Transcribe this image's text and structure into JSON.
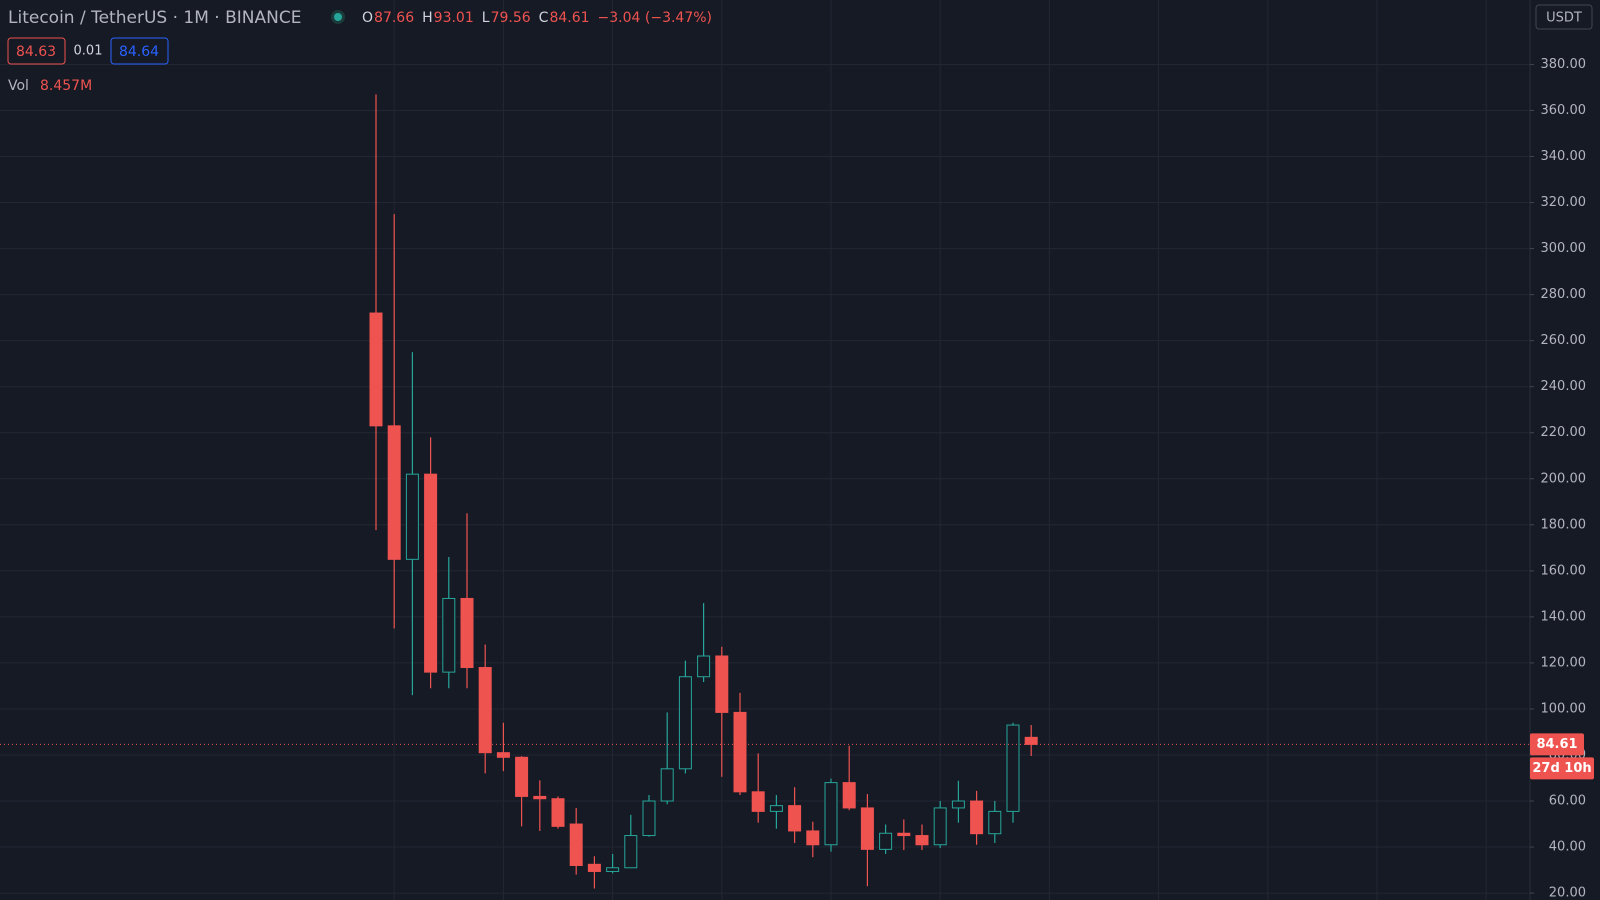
{
  "chart_data": {
    "type": "candlestick",
    "title": "Litecoin / TetherUS · 1M · BINANCE",
    "ohlc_letters": [
      "O",
      "H",
      "L",
      "C"
    ],
    "change": "−3.04 (−3.47%)",
    "quote": {
      "bid": "84.63",
      "spread": "0.01",
      "ask": "84.64"
    },
    "volume_label": "Vol",
    "volume_value": "8.457M",
    "currency": "USDT",
    "countdown": "27d 10h",
    "up_color": "#26a69a",
    "down_color": "#ef5350",
    "ylim": [
      17,
      408
    ],
    "yticks": [
      {
        "value": 20,
        "label": "20.00"
      },
      {
        "value": 40,
        "label": "40.00"
      },
      {
        "value": 60,
        "label": "60.00"
      },
      {
        "value": 80,
        "label": "80.00"
      },
      {
        "value": 100,
        "label": "100.00"
      },
      {
        "value": 120,
        "label": "120.00"
      },
      {
        "value": 140,
        "label": "140.00"
      },
      {
        "value": 160,
        "label": "160.00"
      },
      {
        "value": 180,
        "label": "180.00"
      },
      {
        "value": 200,
        "label": "200.00"
      },
      {
        "value": 220,
        "label": "220.00"
      },
      {
        "value": 240,
        "label": "240.00"
      },
      {
        "value": 260,
        "label": "260.00"
      },
      {
        "value": 280,
        "label": "280.00"
      },
      {
        "value": 300,
        "label": "300.00"
      },
      {
        "value": 320,
        "label": "320.00"
      },
      {
        "value": 340,
        "label": "340.00"
      },
      {
        "value": 360,
        "label": "360.00"
      },
      {
        "value": 380,
        "label": "380.00"
      }
    ],
    "grid": true,
    "open": [
      272,
      223,
      165,
      202,
      116,
      148,
      118,
      81,
      79,
      62,
      61,
      50,
      32.5,
      29.4,
      31,
      45,
      60,
      74,
      114,
      123,
      98.5,
      64,
      55.5,
      58,
      47,
      41,
      68,
      57,
      39,
      46,
      45,
      41,
      57,
      60,
      45.8,
      55.5,
      87.66
    ],
    "high": [
      367,
      315,
      255,
      218,
      166,
      185,
      128,
      94,
      79.5,
      69,
      62,
      57,
      36,
      37,
      54,
      62.6,
      98.5,
      121,
      146,
      127,
      107,
      80.7,
      62.6,
      66,
      51,
      69.7,
      84,
      63,
      49.8,
      52,
      49.8,
      60,
      68.8,
      64.4,
      60,
      94,
      93.01
    ],
    "low": [
      177.7,
      135,
      106,
      109,
      109,
      109,
      72,
      73,
      49,
      47,
      48,
      28,
      22,
      28.6,
      31,
      44.5,
      58.6,
      72,
      111.7,
      70.5,
      62.6,
      50.6,
      48,
      41.8,
      35.6,
      38,
      56,
      23,
      37,
      38.7,
      38.7,
      39.6,
      50.6,
      41,
      41.8,
      50.6,
      79.56
    ],
    "close": [
      223,
      165,
      202,
      116,
      148,
      118,
      81,
      79,
      62,
      61,
      49,
      32,
      29.4,
      31,
      45,
      60,
      74,
      114,
      123,
      98.5,
      64,
      55.5,
      58,
      47,
      41,
      68,
      57,
      39,
      46,
      45,
      41,
      57,
      60,
      45.8,
      55.5,
      93,
      84.61
    ]
  }
}
